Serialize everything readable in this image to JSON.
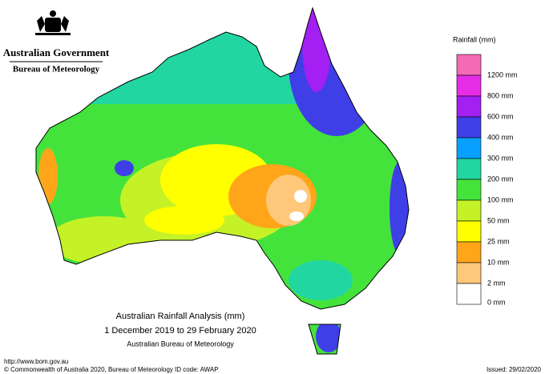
{
  "header": {
    "government": "Australian Government",
    "agency": "Bureau of Meteorology"
  },
  "legend": {
    "title": "Rainfall (mm)",
    "colors": [
      "#f46ab4",
      "#e52ce6",
      "#a31ff2",
      "#3f3fe8",
      "#08a0ff",
      "#22d6a2",
      "#44e33c",
      "#c4f227",
      "#ffff00",
      "#ffa51a",
      "#ffc77a",
      "#ffffff"
    ],
    "labels": [
      "1200 mm",
      "800 mm",
      "600 mm",
      "400 mm",
      "300 mm",
      "200 mm",
      "100 mm",
      "50 mm",
      "25 mm",
      "10 mm",
      "2 mm",
      "0 mm"
    ]
  },
  "caption": {
    "title": "Australian Rainfall Analysis (mm)",
    "period": "1 December 2019 to 29 February 2020",
    "source": "Australian Bureau of Meteorology"
  },
  "footer": {
    "url": "http://www.bom.gov.au",
    "copyright": "© Commonwealth of Australia 2020, Bureau of Meteorology",
    "id_code": "ID code: AWAP",
    "issued": "Issued: 29/02/2020"
  }
}
